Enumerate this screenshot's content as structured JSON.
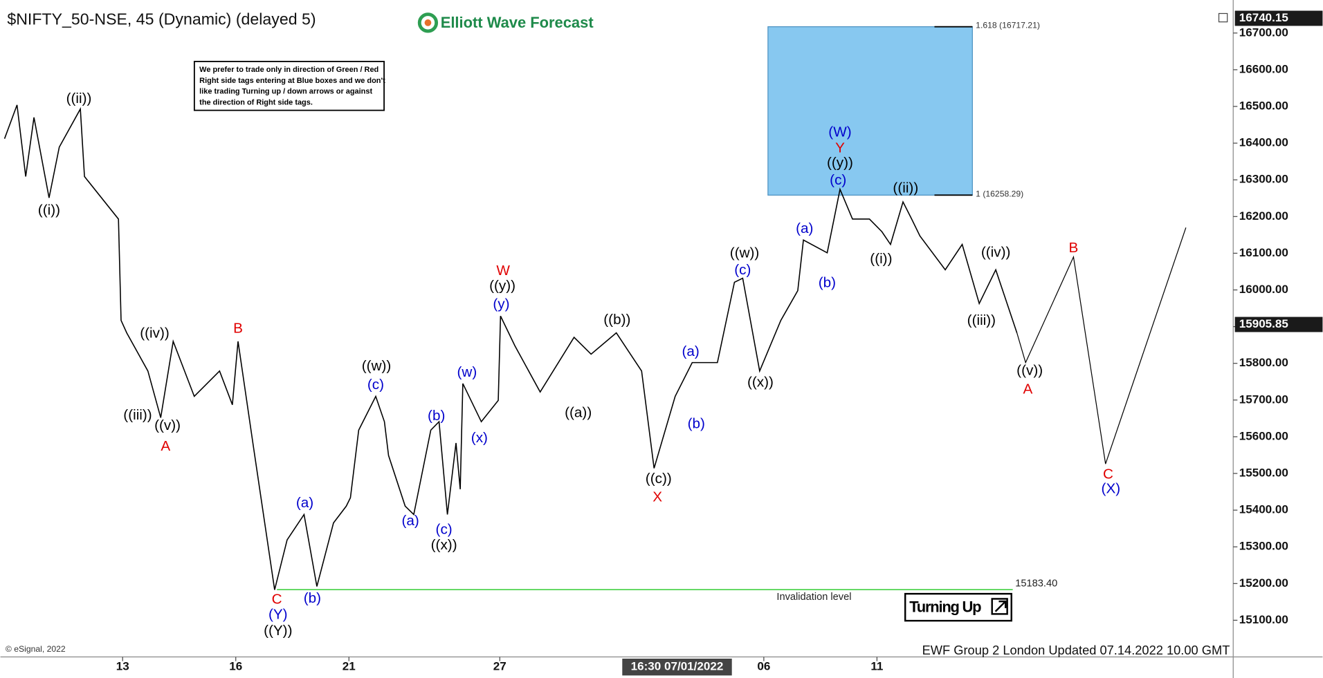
{
  "chart_data": {
    "type": "line",
    "title": "$NIFTY_50-NSE, 45 (Dynamic) (delayed 5)",
    "brand": "Elliott Wave Forecast",
    "note": [
      "We prefer to trade only in direction of Green / Red",
      "Right side tags entering at Blue boxes and we don't",
      "like trading Turning up / down arrows or against",
      "the direction of Right side tags."
    ],
    "footer": "EWF Group 2 London Updated 07.14.2022 10.00 GMT",
    "copyright": "© eSignal, 2022",
    "badge": "Turning Up",
    "color": "#000000",
    "x": [
      -3.13,
      -2.8,
      -2.57,
      -2.35,
      -1.95,
      -1.68,
      -1.12,
      -1.01,
      -0.11,
      -0.04,
      0.11,
      0.67,
      1.01,
      1.34,
      1.9,
      2.57,
      2.91,
      3.06,
      3.47,
      4.03,
      4.36,
      4.81,
      5.15,
      5.59,
      5.93,
      6.04,
      6.26,
      6.71,
      6.94,
      7.05,
      7.49,
      7.72,
      8.17,
      8.39,
      8.61,
      8.84,
      8.95,
      9.02,
      9.51,
      9.96,
      10.02,
      10.4,
      11.07,
      11.97,
      12.42,
      13.09,
      13.76,
      14.09,
      14.65,
      15.1,
      15.77,
      16.22,
      16.44,
      16.89,
      17.45,
      17.9,
      18.05,
      18.68,
      19.02,
      19.35,
      19.8,
      20.13,
      20.36,
      20.69,
      20.92,
      21.14,
      21.81,
      22.26,
      22.71,
      23.15,
      23.71
    ],
    "values": [
      16412,
      16504,
      16309,
      16470,
      16251,
      16389,
      16493,
      16309,
      16193,
      15917,
      15883,
      15779,
      15652,
      15860,
      15710,
      15779,
      15687,
      15860,
      15572,
      15183,
      15319,
      15388,
      15192,
      15365,
      15411,
      15434,
      15618,
      15710,
      15641,
      15549,
      15411,
      15388,
      15618,
      15641,
      15388,
      15583,
      15457,
      15745,
      15641,
      15699,
      15929,
      15848,
      15722,
      15871,
      15825,
      15883,
      15779,
      15514,
      15710,
      15802,
      15802,
      16021,
      16032,
      15779,
      15917,
      15998,
      16136,
      16101,
      16274,
      16193,
      16193,
      16159,
      16124,
      16240,
      16193,
      16147,
      16055,
      16124,
      15963,
      16055,
      15883
    ],
    "projection": {
      "color": "#000000",
      "x": [
        23.71,
        23.94,
        25.21,
        26.06,
        28.19
      ],
      "values": [
        15883,
        15802,
        16090,
        15526,
        16170
      ]
    },
    "xlim": [
      -3.24,
      29.4
    ],
    "ylim": [
      15000,
      16790
    ],
    "xticks": [
      {
        "value": 0,
        "label": "13"
      },
      {
        "value": 3,
        "label": "16"
      },
      {
        "value": 6,
        "label": "21"
      },
      {
        "value": 10,
        "label": "27"
      },
      {
        "value": 17,
        "label": "06"
      },
      {
        "value": 20,
        "label": "11"
      }
    ],
    "crosshair": {
      "value": 14.7,
      "label": "16:30 07/01/2022"
    },
    "yticks": [
      {
        "value": 15100,
        "label": "15100.00"
      },
      {
        "value": 15200,
        "label": "15200.00"
      },
      {
        "value": 15300,
        "label": "15300.00"
      },
      {
        "value": 15400,
        "label": "15400.00"
      },
      {
        "value": 15500,
        "label": "15500.00"
      },
      {
        "value": 15600,
        "label": "15600.00"
      },
      {
        "value": 15700,
        "label": "15700.00"
      },
      {
        "value": 15800,
        "label": "15800.00"
      },
      {
        "value": 15900,
        "label": "15900.00"
      },
      {
        "value": 16000,
        "label": "16000.00"
      },
      {
        "value": 16100,
        "label": "16100.00"
      },
      {
        "value": 16200,
        "label": "16200.00"
      },
      {
        "value": 16300,
        "label": "16300.00"
      },
      {
        "value": 16400,
        "label": "16400.00"
      },
      {
        "value": 16500,
        "label": "16500.00"
      },
      {
        "value": 16600,
        "label": "16600.00"
      },
      {
        "value": 16700,
        "label": "16700.00"
      }
    ],
    "last_price": {
      "value": 15905.85,
      "label": "15905.85"
    },
    "high_price": {
      "value": 16740.15,
      "label": "16740.15"
    },
    "target_box": {
      "color": "#87c8f0",
      "x": [
        17.11,
        22.53
      ],
      "levels": [
        {
          "value": 16258.29,
          "label": "1 (16258.29)"
        },
        {
          "value": 16717.21,
          "label": "1.618 (16717.21)"
        }
      ]
    },
    "invalidation": {
      "color": "#33cc33",
      "value": 15183.4,
      "label": "15183.40",
      "text": "Invalidation level",
      "x": [
        4.09,
        23.6
      ]
    },
    "annotations": [
      {
        "text": "((ii))",
        "x": -1.16,
        "y": 16520,
        "color": "#000000"
      },
      {
        "text": "((i))",
        "x": -1.95,
        "y": 16216,
        "color": "#000000"
      },
      {
        "text": "((iv))",
        "x": 0.85,
        "y": 15880,
        "color": "#000000"
      },
      {
        "text": "((iii))",
        "x": 0.4,
        "y": 15657,
        "color": "#000000"
      },
      {
        "text": "((v))",
        "x": 1.19,
        "y": 15629,
        "color": "#000000"
      },
      {
        "text": "A",
        "x": 1.14,
        "y": 15572,
        "color": "#e00000"
      },
      {
        "text": "B",
        "x": 3.06,
        "y": 15894,
        "color": "#e00000"
      },
      {
        "text": "C",
        "x": 4.09,
        "y": 15155,
        "color": "#e00000"
      },
      {
        "text": "(Y)",
        "x": 4.12,
        "y": 15114,
        "color": "#0000cc"
      },
      {
        "text": "((Y))",
        "x": 4.12,
        "y": 15070,
        "color": "#000000"
      },
      {
        "text": "(a)",
        "x": 4.83,
        "y": 15418,
        "color": "#0000cc"
      },
      {
        "text": "(b)",
        "x": 5.03,
        "y": 15158,
        "color": "#0000cc"
      },
      {
        "text": "((w))",
        "x": 6.73,
        "y": 15791,
        "color": "#000000"
      },
      {
        "text": "(c)",
        "x": 6.71,
        "y": 15740,
        "color": "#0000cc"
      },
      {
        "text": "(a)",
        "x": 7.63,
        "y": 15369,
        "color": "#0000cc"
      },
      {
        "text": "(b)",
        "x": 8.32,
        "y": 15655,
        "color": "#0000cc"
      },
      {
        "text": "(c)",
        "x": 8.52,
        "y": 15346,
        "color": "#0000cc"
      },
      {
        "text": "((x))",
        "x": 8.52,
        "y": 15303,
        "color": "#000000"
      },
      {
        "text": "(w)",
        "x": 9.13,
        "y": 15774,
        "color": "#0000cc"
      },
      {
        "text": "(x)",
        "x": 9.46,
        "y": 15595,
        "color": "#0000cc"
      },
      {
        "text": "W",
        "x": 10.09,
        "y": 16051,
        "color": "#e00000"
      },
      {
        "text": "((y))",
        "x": 10.07,
        "y": 16009,
        "color": "#000000"
      },
      {
        "text": "(y)",
        "x": 10.04,
        "y": 15959,
        "color": "#0000cc"
      },
      {
        "text": "((a))",
        "x": 12.08,
        "y": 15664,
        "color": "#000000"
      },
      {
        "text": "((b))",
        "x": 13.11,
        "y": 15917,
        "color": "#000000"
      },
      {
        "text": "((c))",
        "x": 14.21,
        "y": 15484,
        "color": "#000000"
      },
      {
        "text": "X",
        "x": 14.18,
        "y": 15434,
        "color": "#e00000"
      },
      {
        "text": "(a)",
        "x": 15.06,
        "y": 15830,
        "color": "#0000cc"
      },
      {
        "text": "(b)",
        "x": 15.21,
        "y": 15634,
        "color": "#0000cc"
      },
      {
        "text": "((w))",
        "x": 16.49,
        "y": 16099,
        "color": "#000000"
      },
      {
        "text": "(c)",
        "x": 16.44,
        "y": 16053,
        "color": "#0000cc"
      },
      {
        "text": "((x))",
        "x": 16.91,
        "y": 15747,
        "color": "#000000"
      },
      {
        "text": "(a)",
        "x": 18.08,
        "y": 16166,
        "color": "#0000cc"
      },
      {
        "text": "(b)",
        "x": 18.68,
        "y": 16018,
        "color": "#0000cc"
      },
      {
        "text": "(W)",
        "x": 19.02,
        "y": 16428,
        "color": "#0000cc"
      },
      {
        "text": "Y",
        "x": 19.02,
        "y": 16385,
        "color": "#e00000"
      },
      {
        "text": "((y))",
        "x": 19.02,
        "y": 16345,
        "color": "#000000"
      },
      {
        "text": "(c)",
        "x": 18.97,
        "y": 16297,
        "color": "#0000cc"
      },
      {
        "text": "((ii))",
        "x": 20.76,
        "y": 16276,
        "color": "#000000"
      },
      {
        "text": "((i))",
        "x": 20.11,
        "y": 16083,
        "color": "#000000"
      },
      {
        "text": "((iv))",
        "x": 23.15,
        "y": 16101,
        "color": "#000000"
      },
      {
        "text": "((iii))",
        "x": 22.77,
        "y": 15915,
        "color": "#000000"
      },
      {
        "text": "((v))",
        "x": 24.05,
        "y": 15779,
        "color": "#000000"
      },
      {
        "text": "A",
        "x": 24.0,
        "y": 15728,
        "color": "#e00000"
      },
      {
        "text": "B",
        "x": 25.21,
        "y": 16113,
        "color": "#e00000"
      },
      {
        "text": "C",
        "x": 26.13,
        "y": 15496,
        "color": "#e00000"
      },
      {
        "text": "(X)",
        "x": 26.2,
        "y": 15457,
        "color": "#0000cc"
      }
    ]
  }
}
